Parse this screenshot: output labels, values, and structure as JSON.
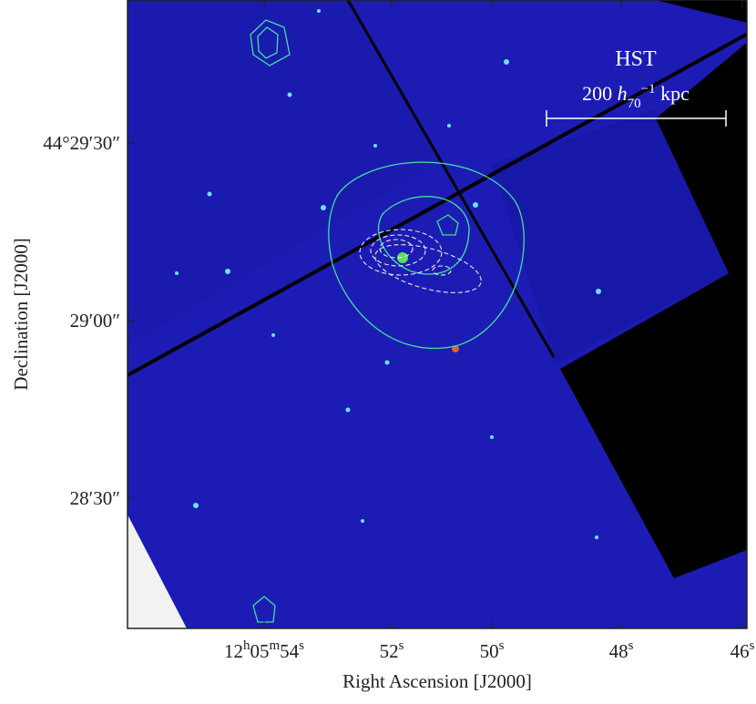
{
  "image": {
    "label": "HST",
    "scale_bar": [
      "200 ",
      "h",
      "70",
      "−1",
      " kpc"
    ],
    "x_axis": {
      "title": "Right Ascension [J2000]",
      "ticks": [
        [
          "12",
          "h",
          "05",
          "m",
          "54",
          "s"
        ],
        [
          "52",
          "s"
        ],
        [
          "50",
          "s"
        ],
        [
          "48",
          "s"
        ],
        [
          "46",
          "s"
        ]
      ]
    },
    "y_axis": {
      "title": "Declination [J2000]",
      "ticks": [
        "44°29′30″",
        "29′00″",
        "28′30″"
      ]
    }
  }
}
